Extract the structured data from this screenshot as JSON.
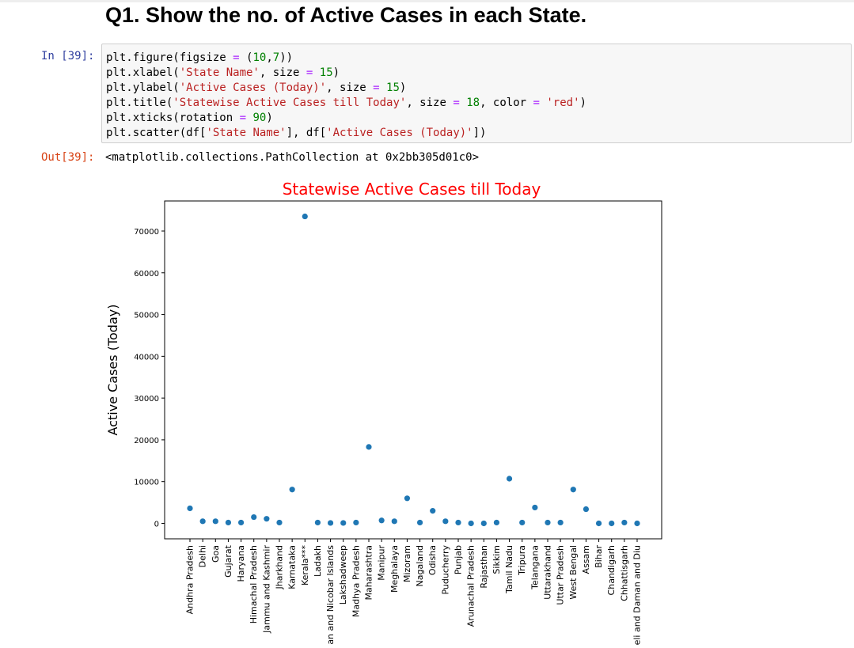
{
  "heading": "Q1. Show the no. of Active Cases in each State.",
  "cell": {
    "in_prompt": "In [39]:",
    "out_prompt": "Out[39]:",
    "code_lines": [
      [
        {
          "t": "plt.figure(figsize "
        },
        {
          "t": "=",
          "c": "op"
        },
        {
          "t": " ("
        },
        {
          "t": "10",
          "c": "num"
        },
        {
          "t": ","
        },
        {
          "t": "7",
          "c": "num"
        },
        {
          "t": "))"
        }
      ],
      [
        {
          "t": "plt.xlabel("
        },
        {
          "t": "'State Name'",
          "c": "str"
        },
        {
          "t": ", size "
        },
        {
          "t": "=",
          "c": "op"
        },
        {
          "t": " "
        },
        {
          "t": "15",
          "c": "num"
        },
        {
          "t": ")"
        }
      ],
      [
        {
          "t": "plt.ylabel("
        },
        {
          "t": "'Active Cases (Today)'",
          "c": "str"
        },
        {
          "t": ", size "
        },
        {
          "t": "=",
          "c": "op"
        },
        {
          "t": " "
        },
        {
          "t": "15",
          "c": "num"
        },
        {
          "t": ")"
        }
      ],
      [
        {
          "t": "plt.title("
        },
        {
          "t": "'Statewise Active Cases till Today'",
          "c": "str"
        },
        {
          "t": ", size "
        },
        {
          "t": "=",
          "c": "op"
        },
        {
          "t": " "
        },
        {
          "t": "18",
          "c": "num"
        },
        {
          "t": ", color "
        },
        {
          "t": "=",
          "c": "op"
        },
        {
          "t": " "
        },
        {
          "t": "'red'",
          "c": "str"
        },
        {
          "t": ")"
        }
      ],
      [
        {
          "t": "plt.xticks(rotation "
        },
        {
          "t": "=",
          "c": "op"
        },
        {
          "t": " "
        },
        {
          "t": "90",
          "c": "num"
        },
        {
          "t": ")"
        }
      ],
      [
        {
          "t": "plt.scatter(df["
        },
        {
          "t": "'State Name'",
          "c": "str"
        },
        {
          "t": "], df["
        },
        {
          "t": "'Active Cases (Today)'",
          "c": "str"
        },
        {
          "t": "])"
        }
      ]
    ],
    "output_text": "<matplotlib.collections.PathCollection at 0x2bb305d01c0>"
  },
  "colors": {
    "title": "#ff0000",
    "marker": "#1f77b4",
    "in_prompt": "#303f9f",
    "out_prompt": "#d84315"
  },
  "chart_data": {
    "type": "scatter",
    "title": "Statewise Active Cases till Today",
    "xlabel": "",
    "ylabel": "Active Cases (Today)",
    "ylim": [
      -3700,
      77200
    ],
    "yticks": [
      0,
      10000,
      20000,
      30000,
      40000,
      50000,
      60000,
      70000
    ],
    "x_tick_rotation": 90,
    "categories": [
      "Andhra Pradesh",
      "Delhi",
      "Goa",
      "Gujarat",
      "Haryana",
      "Himachal Pradesh",
      "Jammu and Kashmir",
      "Jharkhand",
      "Karnataka",
      "Kerala***",
      "Ladakh",
      "an and Nicobar Islands",
      "Lakshadweep",
      "Madhya Pradesh",
      "Maharashtra",
      "Manipur",
      "Meghalaya",
      "Mizoram",
      "Nagaland",
      "Odisha",
      "Puducherry",
      "Punjab",
      "Arunachal Pradesh",
      "Rajasthan",
      "Sikkim",
      "Tamil Nadu",
      "Tripura",
      "Telangana",
      "Uttarakhand",
      "Uttar Pradesh",
      "West Bengal",
      "Assam",
      "Bihar",
      "Chandigarh",
      "Chhattisgarh",
      "eli and Daman and Diu"
    ],
    "values": [
      3600,
      500,
      500,
      200,
      200,
      1500,
      1100,
      200,
      8100,
      73500,
      200,
      100,
      100,
      200,
      18300,
      700,
      500,
      6000,
      200,
      3000,
      500,
      200,
      0,
      0,
      200,
      10700,
      200,
      3800,
      200,
      200,
      8100,
      3400,
      0,
      0,
      200,
      0
    ],
    "grid": false,
    "grid_text": "off"
  }
}
